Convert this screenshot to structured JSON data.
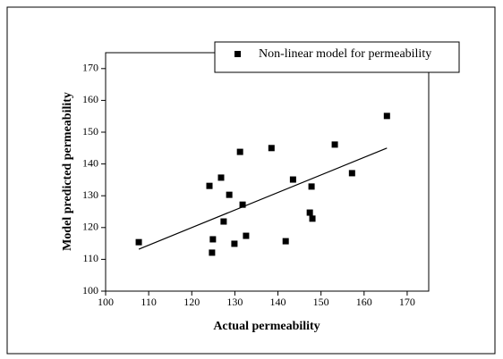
{
  "chart_data": {
    "type": "scatter",
    "xlabel": "Actual permeability",
    "ylabel": "Model predicted permeability",
    "series": [
      {
        "name": "Non-linear model for permeability",
        "color": "#000000",
        "x": [
          107.7,
          124.1,
          124.7,
          124.9,
          126.8,
          127.4,
          128.7,
          129.9,
          131.2,
          131.8,
          132.6,
          138.5,
          141.8,
          143.5,
          147.4,
          147.8,
          148.0,
          153.2,
          157.2,
          165.3
        ],
        "values": [
          115.4,
          133.1,
          112.1,
          116.3,
          135.7,
          121.9,
          130.3,
          114.9,
          143.8,
          127.2,
          117.4,
          145.0,
          115.7,
          135.1,
          124.7,
          132.9,
          122.8,
          146.1,
          137.1,
          155.1
        ]
      }
    ],
    "fit_line": {
      "x": [
        107.7,
        165.3
      ],
      "values": [
        113.2,
        145.0
      ]
    },
    "xlim": [
      100,
      175
    ],
    "ylim": [
      100,
      175
    ],
    "xticks": [
      100,
      110,
      120,
      130,
      140,
      150,
      160,
      170
    ],
    "yticks": [
      100,
      110,
      120,
      130,
      140,
      150,
      160,
      170
    ],
    "legend": "upper right"
  }
}
